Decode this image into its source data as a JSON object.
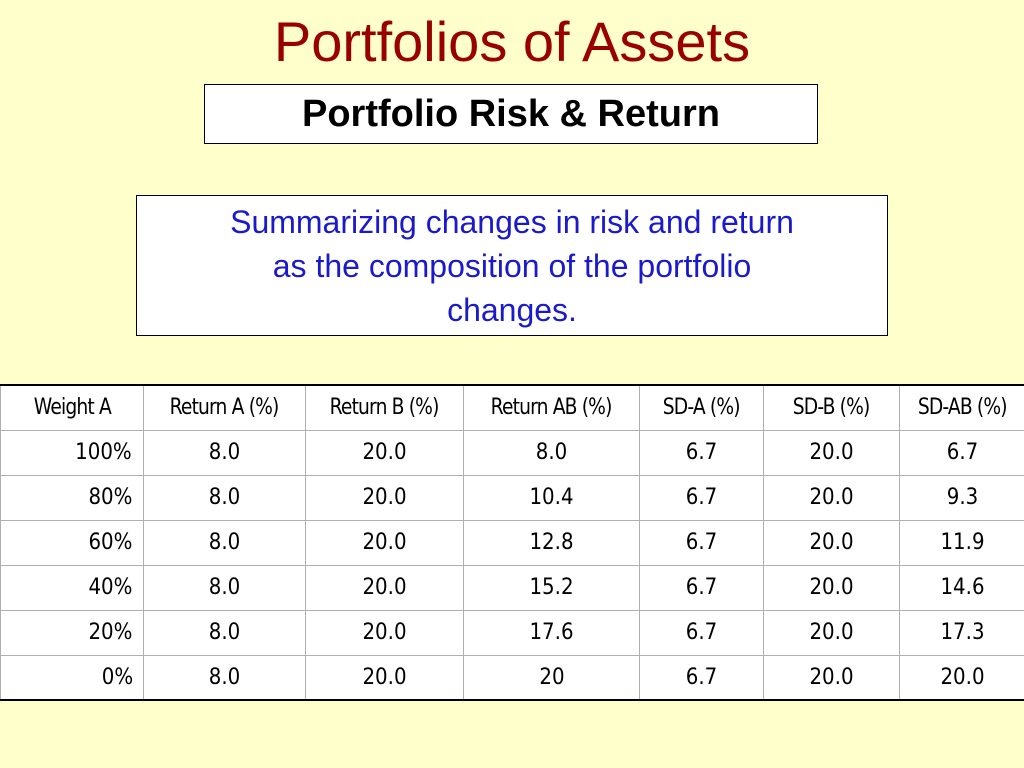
{
  "slide": {
    "title": "Portfolios of Assets",
    "subtitle": "Portfolio Risk & Return",
    "summary_lines": [
      "Summarizing changes in risk and return",
      "as the composition of the portfolio",
      "changes."
    ]
  },
  "colors": {
    "background": "#ffffcc",
    "title": "#990000",
    "summary_text": "#1a1acc"
  },
  "table": {
    "headers": [
      "Weight A",
      "Return A (%)",
      "Return B (%)",
      "Return AB (%)",
      "SD-A (%)",
      "SD-B (%)",
      "SD-AB (%)"
    ],
    "rows": [
      [
        "100%",
        "8.0",
        "20.0",
        "8.0",
        "6.7",
        "20.0",
        "6.7"
      ],
      [
        "80%",
        "8.0",
        "20.0",
        "10.4",
        "6.7",
        "20.0",
        "9.3"
      ],
      [
        "60%",
        "8.0",
        "20.0",
        "12.8",
        "6.7",
        "20.0",
        "11.9"
      ],
      [
        "40%",
        "8.0",
        "20.0",
        "15.2",
        "6.7",
        "20.0",
        "14.6"
      ],
      [
        "20%",
        "8.0",
        "20.0",
        "17.6",
        "6.7",
        "20.0",
        "17.3"
      ],
      [
        "0%",
        "8.0",
        "20.0",
        "20",
        "6.7",
        "20.0",
        "20.0"
      ]
    ]
  }
}
